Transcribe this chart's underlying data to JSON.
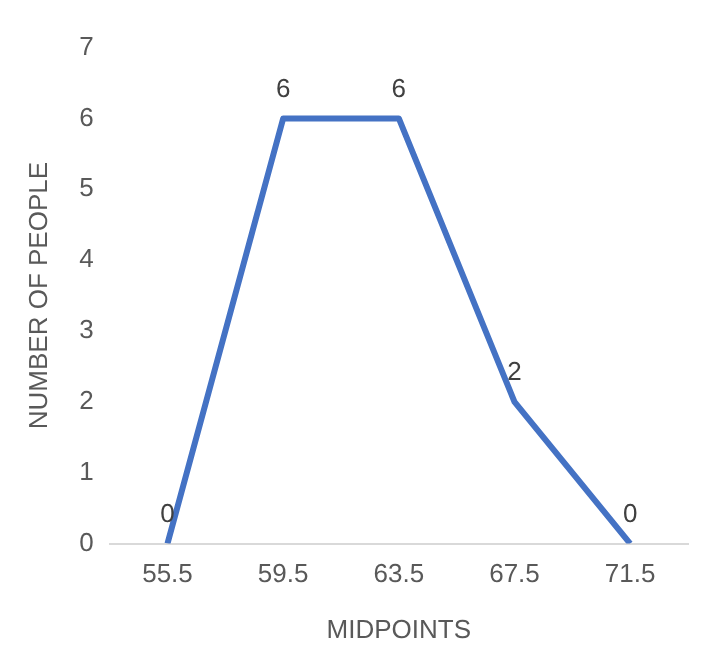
{
  "chart_data": {
    "type": "line",
    "xlabel": "MIDPOINTS",
    "ylabel": "NUMBER OF PEOPLE",
    "categories": [
      "55.5",
      "59.5",
      "63.5",
      "67.5",
      "71.5"
    ],
    "series": [
      {
        "color": "#4472c4",
        "values": [
          0,
          6,
          6,
          2,
          0
        ]
      }
    ],
    "ylim": [
      0,
      7
    ],
    "yticks": [
      0,
      1,
      2,
      3,
      4,
      5,
      6,
      7
    ],
    "grid": false,
    "legend": false,
    "marker": "none",
    "line_style": "solid",
    "data_labels": true
  }
}
